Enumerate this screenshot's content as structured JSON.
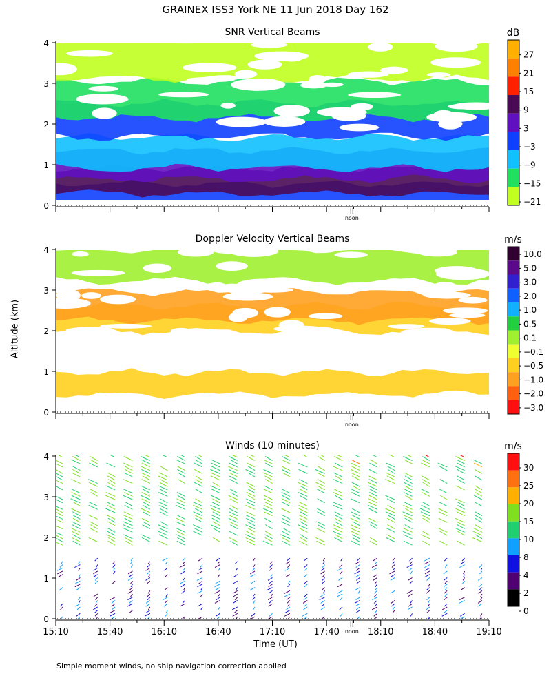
{
  "page_title": "GRAINEX ISS3 York NE  11 Jun 2018 Day 162",
  "footnote": "Simple moment winds, no ship navigation correction applied",
  "ylabel": "Altitude (km)",
  "xlabel": "Time (UT)",
  "noon_label": "noon",
  "x_ticks": [
    "15:10",
    "15:40",
    "16:10",
    "16:40",
    "17:10",
    "17:40",
    "18:10",
    "18:40",
    "19:10"
  ],
  "y_ticks": [
    "0",
    "1",
    "2",
    "3",
    "4"
  ],
  "chart_data": [
    {
      "type": "heatmap",
      "title": "SNR Vertical Beams",
      "unit": "dB",
      "xlim": [
        "15:10",
        "19:10"
      ],
      "ylim": [
        0,
        4
      ],
      "colorbar_labels": [
        "27",
        "21",
        "15",
        "9",
        "3",
        "−3",
        "−9",
        "−15",
        "−21"
      ],
      "colorbar_colors": [
        "#ffb000",
        "#ff8000",
        "#ff2000",
        "#4a0a55",
        "#6010c0",
        "#1040ff",
        "#10c0ff",
        "#20e060",
        "#c0ff20"
      ],
      "layers": [
        {
          "altitude_km": 0.25,
          "level": "#1040ff"
        },
        {
          "altitude_km": 0.6,
          "level": "#4a0a55"
        },
        {
          "altitude_km": 1.0,
          "level": "#6010c0"
        },
        {
          "altitude_km": 1.3,
          "level": "#10c0ff"
        },
        {
          "altitude_km": 2.1,
          "level": "#1040ff"
        },
        {
          "altitude_km": 2.6,
          "level": "#20e060"
        },
        {
          "altitude_km": 3.6,
          "level": "#c0ff20"
        }
      ]
    },
    {
      "type": "heatmap",
      "title": "Doppler Velocity Vertical Beams",
      "unit": "m/s",
      "xlim": [
        "15:10",
        "19:10"
      ],
      "ylim": [
        0,
        4
      ],
      "colorbar_labels": [
        "10.0",
        "5.0",
        "3.0",
        "2.0",
        "1.0",
        "0.5",
        "0.1",
        "−0.1",
        "−0.5",
        "−1.0",
        "−2.0",
        "−3.0"
      ],
      "colorbar_colors": [
        "#300030",
        "#5a0a8a",
        "#3020d0",
        "#1060ff",
        "#10b0ff",
        "#20d040",
        "#a0f030",
        "#f0ff30",
        "#ffd020",
        "#ffa020",
        "#ff6010",
        "#ff1010"
      ],
      "layers": [
        {
          "altitude_km": 0.7,
          "level": "#ffd020"
        },
        {
          "altitude_km": 2.3,
          "level": "#ffd020"
        },
        {
          "altitude_km": 2.6,
          "level": "#ffa020"
        },
        {
          "altitude_km": 3.6,
          "level": "#a0f030"
        }
      ]
    },
    {
      "type": "wind_barbs",
      "title": "Winds (10 minutes)",
      "unit": "m/s",
      "xlim": [
        "15:10",
        "19:10"
      ],
      "ylim": [
        0,
        4
      ],
      "colorbar_labels": [
        "30",
        "25",
        "20",
        "15",
        "10",
        "8",
        "4",
        "2",
        "0"
      ],
      "colorbar_colors": [
        "#ff1010",
        "#ff7010",
        "#ffb000",
        "#80e020",
        "#20d070",
        "#10a0ff",
        "#1010e0",
        "#500070",
        "#000000"
      ]
    }
  ]
}
